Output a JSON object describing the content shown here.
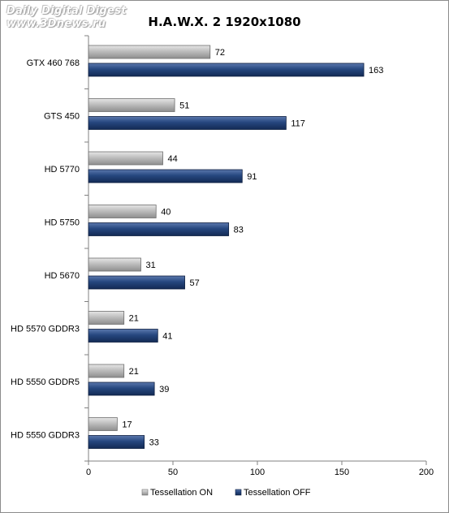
{
  "watermark": {
    "line1": "Daily Digital Digest",
    "line2": "www.3Dnews.ru"
  },
  "chart_data": {
    "type": "bar",
    "orientation": "horizontal",
    "title": "H.A.W.X. 2  1920x1080",
    "categories": [
      "GTX 460 768",
      "GTS 450",
      "HD 5770",
      "HD 5750",
      "HD 5670",
      "HD 5570 GDDR3",
      "HD 5550 GDDR5",
      "HD 5550 GDDR3"
    ],
    "series": [
      {
        "name": "Tessellation ON",
        "color": "#b4b4b4",
        "values": [
          72,
          51,
          44,
          40,
          31,
          21,
          21,
          17
        ]
      },
      {
        "name": "Tessellation OFF",
        "color": "#1f3c6e",
        "values": [
          163,
          117,
          91,
          83,
          57,
          41,
          39,
          33
        ]
      }
    ],
    "xlim": [
      0,
      200
    ],
    "xticks": [
      0,
      50,
      100,
      150,
      200
    ],
    "grid": false,
    "legend_position": "bottom",
    "data_labels": true
  }
}
